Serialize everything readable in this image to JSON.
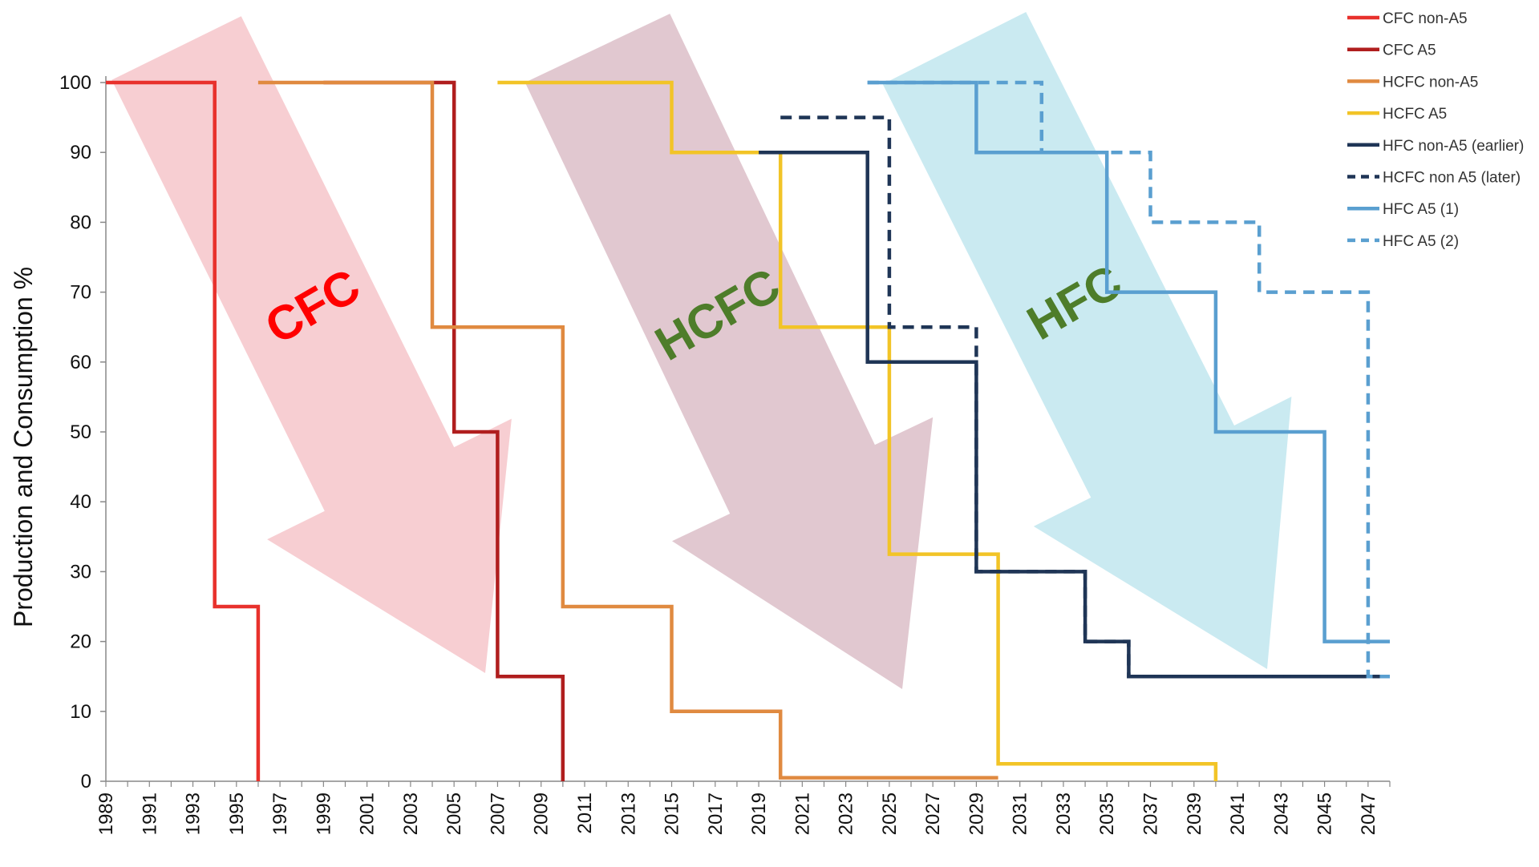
{
  "chart_data": {
    "type": "line",
    "ylabel": "Production and Consumption %",
    "xlabel": "",
    "xlim": [
      1989,
      2048
    ],
    "ylim": [
      0,
      100
    ],
    "x_ticks": [
      "1989",
      "1991",
      "1993",
      "1995",
      "1997",
      "1999",
      "2001",
      "2003",
      "2005",
      "2007",
      "2009",
      "2011",
      "2013",
      "2015",
      "2017",
      "2019",
      "2021",
      "2023",
      "2025",
      "2027",
      "2029",
      "2031",
      "2033",
      "2035",
      "2037",
      "2039",
      "2041",
      "2043",
      "2045",
      "2047"
    ],
    "y_ticks": [
      "0",
      "10",
      "20",
      "30",
      "40",
      "50",
      "60",
      "70",
      "80",
      "90",
      "100"
    ],
    "grid": false,
    "legend_position": "top-right",
    "step": true,
    "series": [
      {
        "name": "CFC non-A5",
        "color": "#e8312c",
        "dashed": false,
        "points": [
          [
            1989,
            100
          ],
          [
            1994,
            100
          ],
          [
            1994,
            25
          ],
          [
            1996,
            25
          ],
          [
            1996,
            0
          ]
        ]
      },
      {
        "name": "CFC A5",
        "color": "#b01e1e",
        "dashed": false,
        "points": [
          [
            1999,
            100
          ],
          [
            2005,
            100
          ],
          [
            2005,
            50
          ],
          [
            2007,
            50
          ],
          [
            2007,
            15
          ],
          [
            2010,
            15
          ],
          [
            2010,
            0
          ]
        ]
      },
      {
        "name": "HCFC non-A5",
        "color": "#e08a40",
        "dashed": false,
        "points": [
          [
            1996,
            100
          ],
          [
            2004,
            100
          ],
          [
            2004,
            65
          ],
          [
            2010,
            65
          ],
          [
            2010,
            25
          ],
          [
            2015,
            25
          ],
          [
            2015,
            10
          ],
          [
            2020,
            10
          ],
          [
            2020,
            0.5
          ],
          [
            2030,
            0.5
          ]
        ]
      },
      {
        "name": "HCFC A5",
        "color": "#f2c427",
        "dashed": false,
        "points": [
          [
            2007,
            100
          ],
          [
            2015,
            100
          ],
          [
            2015,
            90
          ],
          [
            2020,
            90
          ],
          [
            2020,
            65
          ],
          [
            2025,
            65
          ],
          [
            2025,
            32.5
          ],
          [
            2030,
            32.5
          ],
          [
            2030,
            2.5
          ],
          [
            2040,
            2.5
          ],
          [
            2040,
            0
          ]
        ]
      },
      {
        "name": "HFC non-A5 (earlier)",
        "color": "#1f3556",
        "dashed": false,
        "points": [
          [
            2019,
            90
          ],
          [
            2024,
            90
          ],
          [
            2024,
            60
          ],
          [
            2029,
            60
          ],
          [
            2029,
            30
          ],
          [
            2034,
            30
          ],
          [
            2034,
            20
          ],
          [
            2036,
            20
          ],
          [
            2036,
            15
          ],
          [
            2048,
            15
          ]
        ]
      },
      {
        "name": "HCFC non A5 (later)",
        "color": "#1f3556",
        "dashed": true,
        "points": [
          [
            2020,
            95
          ],
          [
            2025,
            95
          ],
          [
            2025,
            65
          ],
          [
            2029,
            65
          ],
          [
            2029,
            30
          ],
          [
            2034,
            30
          ],
          [
            2034,
            20
          ],
          [
            2036,
            20
          ],
          [
            2036,
            15
          ],
          [
            2048,
            15
          ]
        ]
      },
      {
        "name": "HFC A5 (1)",
        "color": "#5a9fd0",
        "dashed": false,
        "points": [
          [
            2024,
            100
          ],
          [
            2029,
            100
          ],
          [
            2029,
            90
          ],
          [
            2035,
            90
          ],
          [
            2035,
            70
          ],
          [
            2040,
            70
          ],
          [
            2040,
            50
          ],
          [
            2045,
            50
          ],
          [
            2045,
            20
          ],
          [
            2048,
            20
          ]
        ]
      },
      {
        "name": "HFC A5 (2)",
        "color": "#5a9fd0",
        "dashed": true,
        "points": [
          [
            2024,
            100
          ],
          [
            2032,
            100
          ],
          [
            2032,
            90
          ],
          [
            2037,
            90
          ],
          [
            2037,
            80
          ],
          [
            2042,
            80
          ],
          [
            2042,
            70
          ],
          [
            2047,
            70
          ],
          [
            2047,
            15
          ],
          [
            2048,
            15
          ]
        ]
      }
    ],
    "annotations": [
      {
        "text": "CFC",
        "color": "#ff0000",
        "arrow_color": "#f1a5ad"
      },
      {
        "text": "HCFC",
        "color": "#4e7d2a",
        "arrow_color": "#c99aa9"
      },
      {
        "text": "HFC",
        "color": "#4e7d2a",
        "arrow_color": "#9fd9e6"
      }
    ]
  }
}
